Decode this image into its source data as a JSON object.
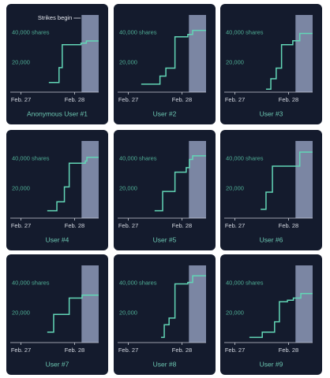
{
  "chart_data": [
    {
      "type": "line",
      "step": true,
      "title": "Anonymous User #1",
      "annotation": "Strikes begin",
      "x": [
        27.52,
        27.71,
        27.77,
        28.12,
        28.22,
        28.45
      ],
      "values": [
        6500,
        16500,
        32000,
        33000,
        34500,
        34500
      ],
      "color": "#62d6b6",
      "shade": [
        28.13,
        28.45
      ],
      "xlim": [
        26.8,
        28.45
      ],
      "ylim": [
        0,
        52000
      ],
      "xticks": [
        {
          "value": 27,
          "label": "Feb. 27"
        },
        {
          "value": 28,
          "label": "Feb. 28"
        }
      ],
      "yticks": [
        {
          "value": 40000,
          "label": "40,000 shares"
        },
        {
          "value": 20000,
          "label": "20,000"
        }
      ]
    },
    {
      "type": "line",
      "step": true,
      "title": "User #2",
      "x": [
        27.24,
        27.59,
        27.7,
        27.87,
        28.11,
        28.2,
        28.45
      ],
      "values": [
        5400,
        10800,
        16200,
        37300,
        38900,
        41600,
        41600
      ],
      "color": "#62d6b6",
      "shade": [
        28.13,
        28.45
      ],
      "xlim": [
        26.8,
        28.45
      ],
      "ylim": [
        0,
        52000
      ],
      "xticks": [
        {
          "value": 27,
          "label": "Feb. 27"
        },
        {
          "value": 28,
          "label": "Feb. 28"
        }
      ],
      "yticks": [
        {
          "value": 40000,
          "label": "40,000 shares"
        },
        {
          "value": 20000,
          "label": "20,000"
        }
      ]
    },
    {
      "type": "line",
      "step": true,
      "title": "User #3",
      "x": [
        27.58,
        27.67,
        27.77,
        27.87,
        28.08,
        28.21,
        28.45
      ],
      "values": [
        2000,
        9000,
        16200,
        32000,
        34600,
        39500,
        39500
      ],
      "color": "#62d6b6",
      "shade": [
        28.13,
        28.45
      ],
      "xlim": [
        26.8,
        28.45
      ],
      "ylim": [
        0,
        52000
      ],
      "xticks": [
        {
          "value": 27,
          "label": "Feb. 27"
        },
        {
          "value": 28,
          "label": "Feb. 28"
        }
      ],
      "yticks": [
        {
          "value": 40000,
          "label": "40,000 shares"
        },
        {
          "value": 20000,
          "label": "20,000"
        }
      ]
    },
    {
      "type": "line",
      "step": true,
      "title": "User #4",
      "x": [
        27.49,
        27.67,
        27.81,
        27.9,
        28.2,
        28.23,
        28.45
      ],
      "values": [
        5000,
        11000,
        21000,
        37000,
        38500,
        41000,
        41000
      ],
      "color": "#62d6b6",
      "shade": [
        28.13,
        28.45
      ],
      "xlim": [
        26.8,
        28.45
      ],
      "ylim": [
        0,
        52000
      ],
      "xticks": [
        {
          "value": 27,
          "label": "Feb. 27"
        },
        {
          "value": 28,
          "label": "Feb. 28"
        }
      ],
      "yticks": [
        {
          "value": 40000,
          "label": "40,000 shares"
        },
        {
          "value": 20000,
          "label": "20,000"
        }
      ]
    },
    {
      "type": "line",
      "step": true,
      "title": "User #5",
      "x": [
        27.49,
        27.64,
        27.87,
        28.08,
        28.14,
        28.2,
        28.45
      ],
      "values": [
        5000,
        18000,
        31000,
        34000,
        39500,
        42000,
        42000
      ],
      "color": "#62d6b6",
      "shade": [
        28.13,
        28.45
      ],
      "xlim": [
        26.8,
        28.45
      ],
      "ylim": [
        0,
        52000
      ],
      "xticks": [
        {
          "value": 27,
          "label": "Feb. 27"
        },
        {
          "value": 28,
          "label": "Feb. 28"
        }
      ],
      "yticks": [
        {
          "value": 40000,
          "label": "40,000 shares"
        },
        {
          "value": 20000,
          "label": "20,000"
        }
      ]
    },
    {
      "type": "line",
      "step": true,
      "title": "User #6",
      "x": [
        27.48,
        27.58,
        27.7,
        28.21,
        28.45
      ],
      "values": [
        6000,
        17500,
        35000,
        44500,
        44500
      ],
      "color": "#62d6b6",
      "shade": [
        28.13,
        28.45
      ],
      "xlim": [
        26.8,
        28.45
      ],
      "ylim": [
        0,
        52000
      ],
      "xticks": [
        {
          "value": 27,
          "label": "Feb. 27"
        },
        {
          "value": 28,
          "label": "Feb. 28"
        }
      ],
      "yticks": [
        {
          "value": 40000,
          "label": "40,000 shares"
        },
        {
          "value": 20000,
          "label": "20,000"
        }
      ]
    },
    {
      "type": "line",
      "step": true,
      "title": "User #7",
      "x": [
        27.49,
        27.61,
        27.9,
        28.14,
        28.45
      ],
      "values": [
        7000,
        19000,
        30000,
        32000,
        32000
      ],
      "color": "#62d6b6",
      "shade": [
        28.13,
        28.45
      ],
      "xlim": [
        26.8,
        28.45
      ],
      "ylim": [
        0,
        52000
      ],
      "xticks": [
        {
          "value": 27,
          "label": "Feb. 27"
        },
        {
          "value": 28,
          "label": "Feb. 28"
        }
      ],
      "yticks": [
        {
          "value": 40000,
          "label": "40,000 shares"
        },
        {
          "value": 20000,
          "label": "20,000"
        }
      ]
    },
    {
      "type": "line",
      "step": true,
      "title": "User #8",
      "x": [
        27.61,
        27.67,
        27.76,
        27.87,
        28.11,
        28.2,
        28.45
      ],
      "values": [
        3500,
        12000,
        16500,
        39500,
        40500,
        45000,
        45000
      ],
      "color": "#62d6b6",
      "shade": [
        28.13,
        28.45
      ],
      "xlim": [
        26.8,
        28.45
      ],
      "ylim": [
        0,
        52000
      ],
      "xticks": [
        {
          "value": 27,
          "label": "Feb. 27"
        },
        {
          "value": 28,
          "label": "Feb. 28"
        }
      ],
      "yticks": [
        {
          "value": 40000,
          "label": "40,000 shares"
        },
        {
          "value": 20000,
          "label": "20,000"
        }
      ]
    },
    {
      "type": "line",
      "step": true,
      "title": "User #9",
      "x": [
        27.27,
        27.51,
        27.74,
        27.83,
        27.98,
        28.09,
        28.23,
        28.45
      ],
      "values": [
        3500,
        7000,
        14000,
        27500,
        28500,
        30000,
        33000,
        33000
      ],
      "color": "#62d6b6",
      "shade": [
        28.13,
        28.45
      ],
      "xlim": [
        26.8,
        28.45
      ],
      "ylim": [
        0,
        52000
      ],
      "xticks": [
        {
          "value": 27,
          "label": "Feb. 27"
        },
        {
          "value": 28,
          "label": "Feb. 28"
        }
      ],
      "yticks": [
        {
          "value": 40000,
          "label": "40,000 shares"
        },
        {
          "value": 20000,
          "label": "20,000"
        }
      ]
    }
  ]
}
